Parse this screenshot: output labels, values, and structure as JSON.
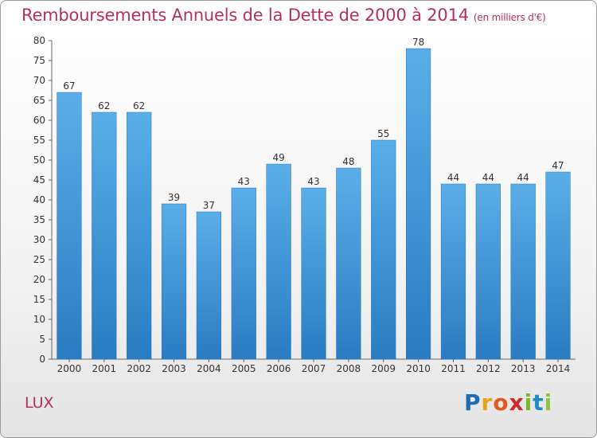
{
  "chart_data": {
    "type": "bar",
    "title": "Remboursements Annuels de la Dette de 2000 à 2014",
    "unit_label": "(en milliers d'€)",
    "categories": [
      "2000",
      "2001",
      "2002",
      "2003",
      "2004",
      "2005",
      "2006",
      "2007",
      "2008",
      "2009",
      "2010",
      "2011",
      "2012",
      "2013",
      "2014"
    ],
    "values": [
      67,
      62,
      62,
      39,
      37,
      43,
      49,
      43,
      48,
      55,
      78,
      44,
      44,
      44,
      47
    ],
    "ylim": [
      0,
      80
    ],
    "yticks": [
      0,
      5,
      10,
      15,
      20,
      25,
      30,
      35,
      40,
      45,
      50,
      55,
      60,
      65,
      70,
      75,
      80
    ],
    "grid": false,
    "bar_color": "#3a8fd6"
  },
  "footer": {
    "city": "LUX",
    "logo": "Proxiti"
  }
}
